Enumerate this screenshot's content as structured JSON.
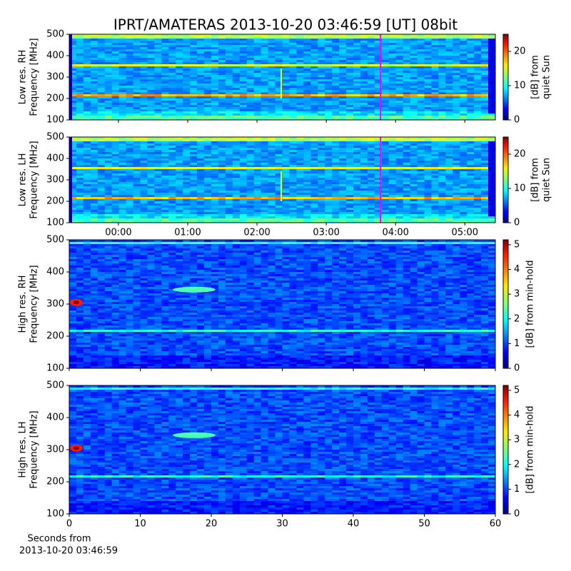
{
  "chart_data": [
    {
      "type": "heatmap",
      "title": "IPRT/AMATERAS 2013-10-20 03:46:59 [UT]   08bit",
      "ylabel": [
        "Low res. RH",
        "Frequency [MHz]"
      ],
      "ylim": [
        100,
        500
      ],
      "yticks": [
        100,
        200,
        300,
        400,
        500
      ],
      "xlim": [
        -0.71,
        5.44
      ],
      "xticks": [
        0,
        1,
        2,
        3,
        4,
        5
      ],
      "marker_x": 3.783,
      "marker_color": "#ff00ff",
      "colorbar_label": [
        "[dB] from",
        "quiet Sun"
      ],
      "clim": [
        0,
        25
      ],
      "cticks": [
        0,
        10,
        20
      ]
    },
    {
      "type": "heatmap",
      "ylabel": [
        "Low res. LH",
        "Frequency [MHz]"
      ],
      "ylim": [
        100,
        500
      ],
      "yticks": [
        100,
        200,
        300,
        400,
        500
      ],
      "xlim": [
        -0.71,
        5.44
      ],
      "xticks": [
        {
          "value": 0,
          "label": "00:00"
        },
        {
          "value": 1,
          "label": "01:00"
        },
        {
          "value": 2,
          "label": "02:00"
        },
        {
          "value": 3,
          "label": "03:00"
        },
        {
          "value": 4,
          "label": "04:00"
        },
        {
          "value": 5,
          "label": "05:00"
        }
      ],
      "marker_x": 3.783,
      "marker_color": "#ff00ff",
      "colorbar_label": [
        "[dB] from",
        "quiet Sun"
      ],
      "clim": [
        0,
        25
      ],
      "cticks": [
        0,
        10,
        20
      ]
    },
    {
      "type": "heatmap",
      "ylabel": [
        "High res. RH",
        "Frequency [MHz]"
      ],
      "ylim": [
        100,
        500
      ],
      "yticks": [
        100,
        200,
        300,
        400,
        500
      ],
      "xlim": [
        0,
        60
      ],
      "xticks": [
        0,
        10,
        20,
        30,
        40,
        50,
        60
      ],
      "xtick_labels": false,
      "colorbar_label": [
        "[dB] from min-hold"
      ],
      "clim": [
        0,
        5.2
      ],
      "cticks": [
        0,
        1,
        2,
        3,
        4,
        5
      ]
    },
    {
      "type": "heatmap",
      "ylabel": [
        "High res. LH",
        "Frequency [MHz]"
      ],
      "ylim": [
        100,
        500
      ],
      "yticks": [
        100,
        200,
        300,
        400,
        500
      ],
      "xlim": [
        0,
        60
      ],
      "xticks": [
        0,
        10,
        20,
        30,
        40,
        50,
        60
      ],
      "xtick_labels": true,
      "xlabel": [
        "Seconds from",
        "2013-10-20 03:46:59"
      ],
      "colorbar_label": [
        "[dB] from min-hold"
      ],
      "clim": [
        0,
        5.2
      ],
      "cticks": [
        0,
        1,
        2,
        3,
        4,
        5
      ]
    }
  ]
}
